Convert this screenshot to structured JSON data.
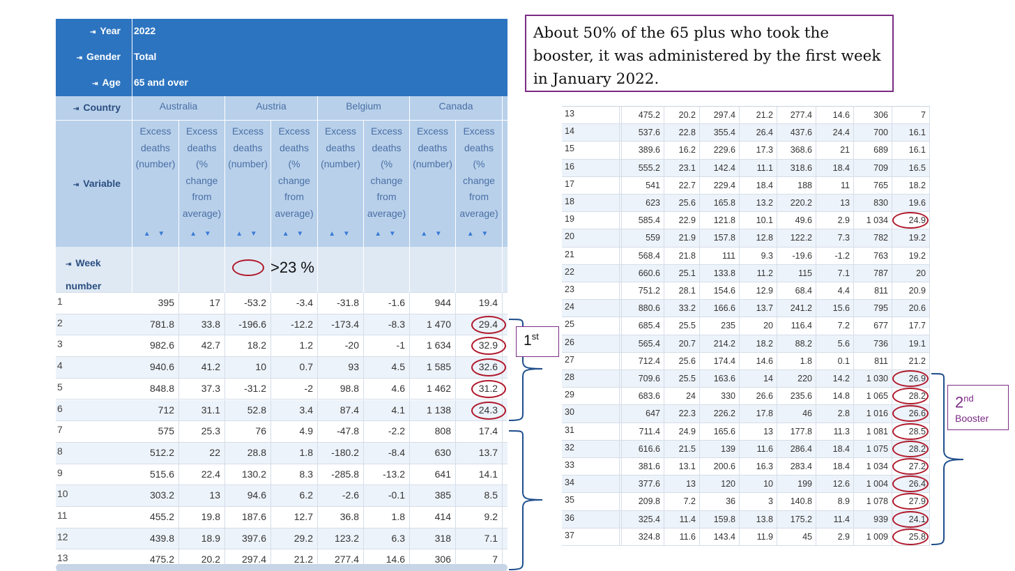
{
  "left_table": {
    "filters": [
      {
        "label": "Year",
        "value": "2022"
      },
      {
        "label": "Gender",
        "value": "Total"
      },
      {
        "label": "Age",
        "value": "65 and over"
      }
    ],
    "country_label": "Country",
    "countries": [
      "Australia",
      "Austria",
      "Belgium",
      "Canada"
    ],
    "variable_label": "Variable",
    "variables": [
      "Excess deaths (number)",
      "Excess deaths (% change from average)"
    ],
    "week_label": "Week number",
    "sort_icons": "▲ ▼",
    "rows": [
      [
        "1",
        "395",
        "17",
        "-53.2",
        "-3.4",
        "-31.8",
        "-1.6",
        "944",
        "19.4"
      ],
      [
        "2",
        "781.8",
        "33.8",
        "-196.6",
        "-12.2",
        "-173.4",
        "-8.3",
        "1 470",
        "29.4"
      ],
      [
        "3",
        "982.6",
        "42.7",
        "18.2",
        "1.2",
        "-20",
        "-1",
        "1 634",
        "32.9"
      ],
      [
        "4",
        "940.6",
        "41.2",
        "10",
        "0.7",
        "93",
        "4.5",
        "1 585",
        "32.6"
      ],
      [
        "5",
        "848.8",
        "37.3",
        "-31.2",
        "-2",
        "98.8",
        "4.6",
        "1 462",
        "31.2"
      ],
      [
        "6",
        "712",
        "31.1",
        "52.8",
        "3.4",
        "87.4",
        "4.1",
        "1 138",
        "24.3"
      ],
      [
        "7",
        "575",
        "25.3",
        "76",
        "4.9",
        "-47.8",
        "-2.2",
        "808",
        "17.4"
      ],
      [
        "8",
        "512.2",
        "22",
        "28.8",
        "1.8",
        "-180.2",
        "-8.4",
        "630",
        "13.7"
      ],
      [
        "9",
        "515.6",
        "22.4",
        "130.2",
        "8.3",
        "-285.8",
        "-13.2",
        "641",
        "14.1"
      ],
      [
        "10",
        "303.2",
        "13",
        "94.6",
        "6.2",
        "-2.6",
        "-0.1",
        "385",
        "8.5"
      ],
      [
        "11",
        "455.2",
        "19.8",
        "187.6",
        "12.7",
        "36.8",
        "1.8",
        "414",
        "9.2"
      ],
      [
        "12",
        "439.8",
        "18.9",
        "397.6",
        "29.2",
        "123.2",
        "6.3",
        "318",
        "7.1"
      ],
      [
        "13",
        "475.2",
        "20.2",
        "297.4",
        "21.2",
        "277.4",
        "14.6",
        "306",
        "7"
      ]
    ]
  },
  "right_table": {
    "rows": [
      [
        "13",
        "475.2",
        "20.2",
        "297.4",
        "21.2",
        "277.4",
        "14.6",
        "306",
        "7"
      ],
      [
        "14",
        "537.6",
        "22.8",
        "355.4",
        "26.4",
        "437.6",
        "24.4",
        "700",
        "16.1"
      ],
      [
        "15",
        "389.6",
        "16.2",
        "229.6",
        "17.3",
        "368.6",
        "21",
        "689",
        "16.1"
      ],
      [
        "16",
        "555.2",
        "23.1",
        "142.4",
        "11.1",
        "318.6",
        "18.4",
        "709",
        "16.5"
      ],
      [
        "17",
        "541",
        "22.7",
        "229.4",
        "18.4",
        "188",
        "11",
        "765",
        "18.2"
      ],
      [
        "18",
        "623",
        "25.6",
        "165.8",
        "13.2",
        "220.2",
        "13",
        "830",
        "19.6"
      ],
      [
        "19",
        "585.4",
        "22.9",
        "121.8",
        "10.1",
        "49.6",
        "2.9",
        "1 034",
        "24.9"
      ],
      [
        "20",
        "559",
        "21.9",
        "157.8",
        "12.8",
        "122.2",
        "7.3",
        "782",
        "19.2"
      ],
      [
        "21",
        "568.4",
        "21.8",
        "111",
        "9.3",
        "-19.6",
        "-1.2",
        "763",
        "19.2"
      ],
      [
        "22",
        "660.6",
        "25.1",
        "133.8",
        "11.2",
        "115",
        "7.1",
        "787",
        "20"
      ],
      [
        "23",
        "751.2",
        "28.1",
        "154.6",
        "12.9",
        "68.4",
        "4.4",
        "811",
        "20.9"
      ],
      [
        "24",
        "880.6",
        "33.2",
        "166.6",
        "13.7",
        "241.2",
        "15.6",
        "795",
        "20.6"
      ],
      [
        "25",
        "685.4",
        "25.5",
        "235",
        "20",
        "116.4",
        "7.2",
        "677",
        "17.7"
      ],
      [
        "26",
        "565.4",
        "20.7",
        "214.2",
        "18.2",
        "88.2",
        "5.6",
        "736",
        "19.1"
      ],
      [
        "27",
        "712.4",
        "25.6",
        "174.4",
        "14.6",
        "1.8",
        "0.1",
        "811",
        "21.2"
      ],
      [
        "28",
        "709.6",
        "25.5",
        "163.6",
        "14",
        "220",
        "14.2",
        "1 030",
        "26.9"
      ],
      [
        "29",
        "683.6",
        "24",
        "330",
        "26.6",
        "235.6",
        "14.8",
        "1 065",
        "28.2"
      ],
      [
        "30",
        "647",
        "22.3",
        "226.2",
        "17.8",
        "46",
        "2.8",
        "1 016",
        "26.6"
      ],
      [
        "31",
        "711.4",
        "24.9",
        "165.6",
        "13",
        "177.8",
        "11.3",
        "1 081",
        "28.5"
      ],
      [
        "32",
        "616.6",
        "21.5",
        "139",
        "11.6",
        "286.4",
        "18.4",
        "1 075",
        "28.2"
      ],
      [
        "33",
        "381.6",
        "13.1",
        "200.6",
        "16.3",
        "283.4",
        "18.4",
        "1 034",
        "27.2"
      ],
      [
        "34",
        "377.6",
        "13",
        "120",
        "10",
        "199",
        "12.6",
        "1 004",
        "26.4"
      ],
      [
        "35",
        "209.8",
        "7.2",
        "36",
        "3",
        "140.8",
        "8.9",
        "1 078",
        "27.9"
      ],
      [
        "36",
        "325.4",
        "11.4",
        "159.8",
        "13.8",
        "175.2",
        "11.4",
        "939",
        "24.1"
      ],
      [
        "37",
        "324.8",
        "11.6",
        "143.4",
        "11.9",
        "45",
        "2.9",
        "1 009",
        "25.8"
      ]
    ]
  },
  "annotations": {
    "note": "About 50% of the 65 plus who took the booster, it was administered by the first week in January 2022.",
    "legend_text": ">23 %",
    "first_booster_num": "1",
    "first_booster_sup": "st",
    "second_booster_num": "2",
    "second_booster_sup": "nd",
    "second_booster_word": "Booster",
    "circle_color": "#b0182b",
    "note_border_color": "#7b2a85",
    "bracket_color": "#1f4e8c"
  }
}
